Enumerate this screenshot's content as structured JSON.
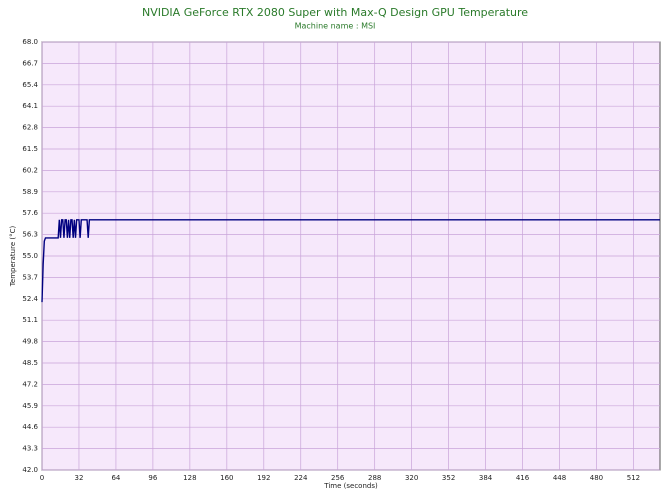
{
  "chart_data": {
    "type": "line",
    "title": "NVIDIA GeForce RTX 2080 Super with Max-Q Design GPU Temperature",
    "subtitle": "Machine name : MSI",
    "x_label": "Time (seconds)",
    "y_label": "Temperature (°C)",
    "x": [
      0,
      1,
      2,
      3,
      4,
      5,
      6,
      7,
      8,
      9,
      10,
      11,
      12,
      13,
      14,
      15,
      16,
      17,
      18,
      19,
      20,
      21,
      22,
      23,
      24,
      25,
      26,
      27,
      28,
      29,
      30,
      31,
      32,
      33,
      34,
      35,
      36,
      37,
      38,
      39,
      40,
      41,
      42,
      43,
      44,
      535
    ],
    "series": [
      {
        "name": "Temperature",
        "color": "#000080",
        "values": [
          52.2,
          54.5,
          55.9,
          56.1,
          56.1,
          56.1,
          56.1,
          56.1,
          56.1,
          56.1,
          56.1,
          56.1,
          56.1,
          56.1,
          56.1,
          57.2,
          56.1,
          57.2,
          57.2,
          56.1,
          57.2,
          57.2,
          56.1,
          57.2,
          56.1,
          57.2,
          57.2,
          56.1,
          57.2,
          56.1,
          57.2,
          57.2,
          57.2,
          56.1,
          57.2,
          57.2,
          57.2,
          57.2,
          57.2,
          57.2,
          56.1,
          57.2,
          57.2,
          57.2,
          57.2,
          57.2
        ]
      }
    ],
    "xlim": [
      0,
      535
    ],
    "ylim": [
      42,
      68
    ],
    "xticks": [
      0,
      32,
      64,
      96,
      128,
      160,
      192,
      224,
      256,
      288,
      320,
      352,
      384,
      416,
      448,
      480,
      512
    ],
    "yticks": [
      {
        "value": 42,
        "label": "42.0"
      },
      43.3,
      44.6,
      45.9,
      47.2,
      48.5,
      49.8,
      51.1,
      52.4,
      53.7,
      {
        "value": 55,
        "label": "55.0"
      },
      56.3,
      57.6,
      58.9,
      60.2,
      61.5,
      62.8,
      64.1,
      65.4,
      66.7,
      {
        "value": 68,
        "label": "68.0"
      }
    ],
    "grid": true
  }
}
